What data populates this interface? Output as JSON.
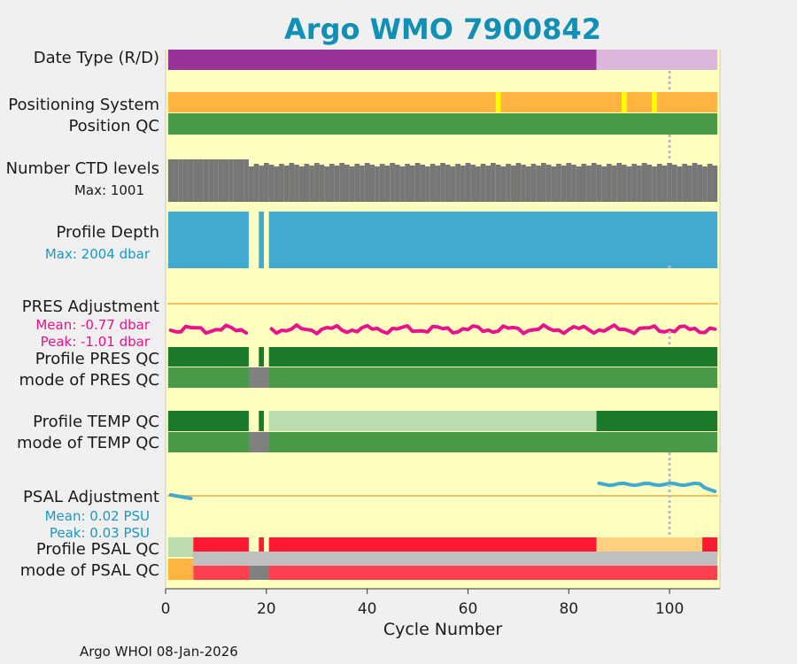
{
  "title": "Argo WMO 7900842",
  "xlabel": "Cycle Number",
  "footer": "Argo WHOI 08-Jan-2026",
  "rows": {
    "date_type": "Date Type (R/D)",
    "positioning_system": "Positioning System",
    "position_qc": "Position QC",
    "n_ctd_levels": "Number CTD levels",
    "n_ctd_max": "Max: 1001",
    "profile_depth": "Profile Depth",
    "profile_depth_max": "Max: 2004 dbar",
    "pres_adjustment": "PRES Adjustment",
    "pres_mean": "Mean: -0.77 dbar",
    "pres_peak": "Peak: -1.01 dbar",
    "profile_pres_qc": "Profile PRES QC",
    "mode_pres_qc": "mode of PRES QC",
    "profile_temp_qc": "Profile TEMP QC",
    "mode_temp_qc": "mode of TEMP QC",
    "psal_adjustment": "PSAL Adjustment",
    "psal_mean": "Mean: 0.02 PSU",
    "psal_peak": "Peak: 0.03 PSU",
    "profile_psal_qc": "Profile PSAL QC",
    "mode_psal_qc": "mode of PSAL QC"
  },
  "colors": {
    "background": "#ffffc0",
    "date_realtime": "#993399",
    "date_delayed": "#dbb8db",
    "positioning_gps": "#ffb340",
    "positioning_other": "#ffff00",
    "qc_good_mode": "#4a9a4a",
    "qc_profile_a": "#1a7a2a",
    "qc_profile_light": "#bcdcb0",
    "qc_gray": "#808080",
    "ctd_levels": "#777777",
    "profile_depth": "#42a9d1",
    "pres_line": "#e8128c",
    "psal_line": "#42a9d1",
    "zero_line": "#f0c060",
    "psal_qc_bad": "#ff1a33",
    "psal_qc_mode_bad": "#ff4050",
    "psal_qc_orange": "#ffd080",
    "psal_qc_gray": "#bfbfbf",
    "vline": "#b8b8d8"
  },
  "chart_data": {
    "type": "table",
    "title": "Argo WMO 7900842",
    "xlabel": "Cycle Number",
    "xlim": [
      0,
      110
    ],
    "xticks": [
      0,
      20,
      40,
      60,
      80,
      100
    ],
    "marker_cycle": 100,
    "gaps": [
      17,
      18,
      20
    ],
    "date_type_delayed_start_cycle": 86,
    "positioning_other_cycles": [
      66,
      91,
      97
    ],
    "n_ctd_max": 1001,
    "profile_depth_max_dbar": 2004,
    "pres_adjustment": {
      "mean_dbar": -0.77,
      "peak_dbar": -1.01,
      "first_cycle": 1,
      "last_cycle": 109
    },
    "psal_adjustment": {
      "mean_psu": 0.02,
      "peak_psu": 0.03,
      "segments": [
        [
          1,
          5
        ],
        [
          86,
          109
        ]
      ]
    },
    "profile_temp_qc_light_range": [
      21,
      85
    ],
    "psal_qc_orange_range": [
      86,
      106
    ]
  }
}
